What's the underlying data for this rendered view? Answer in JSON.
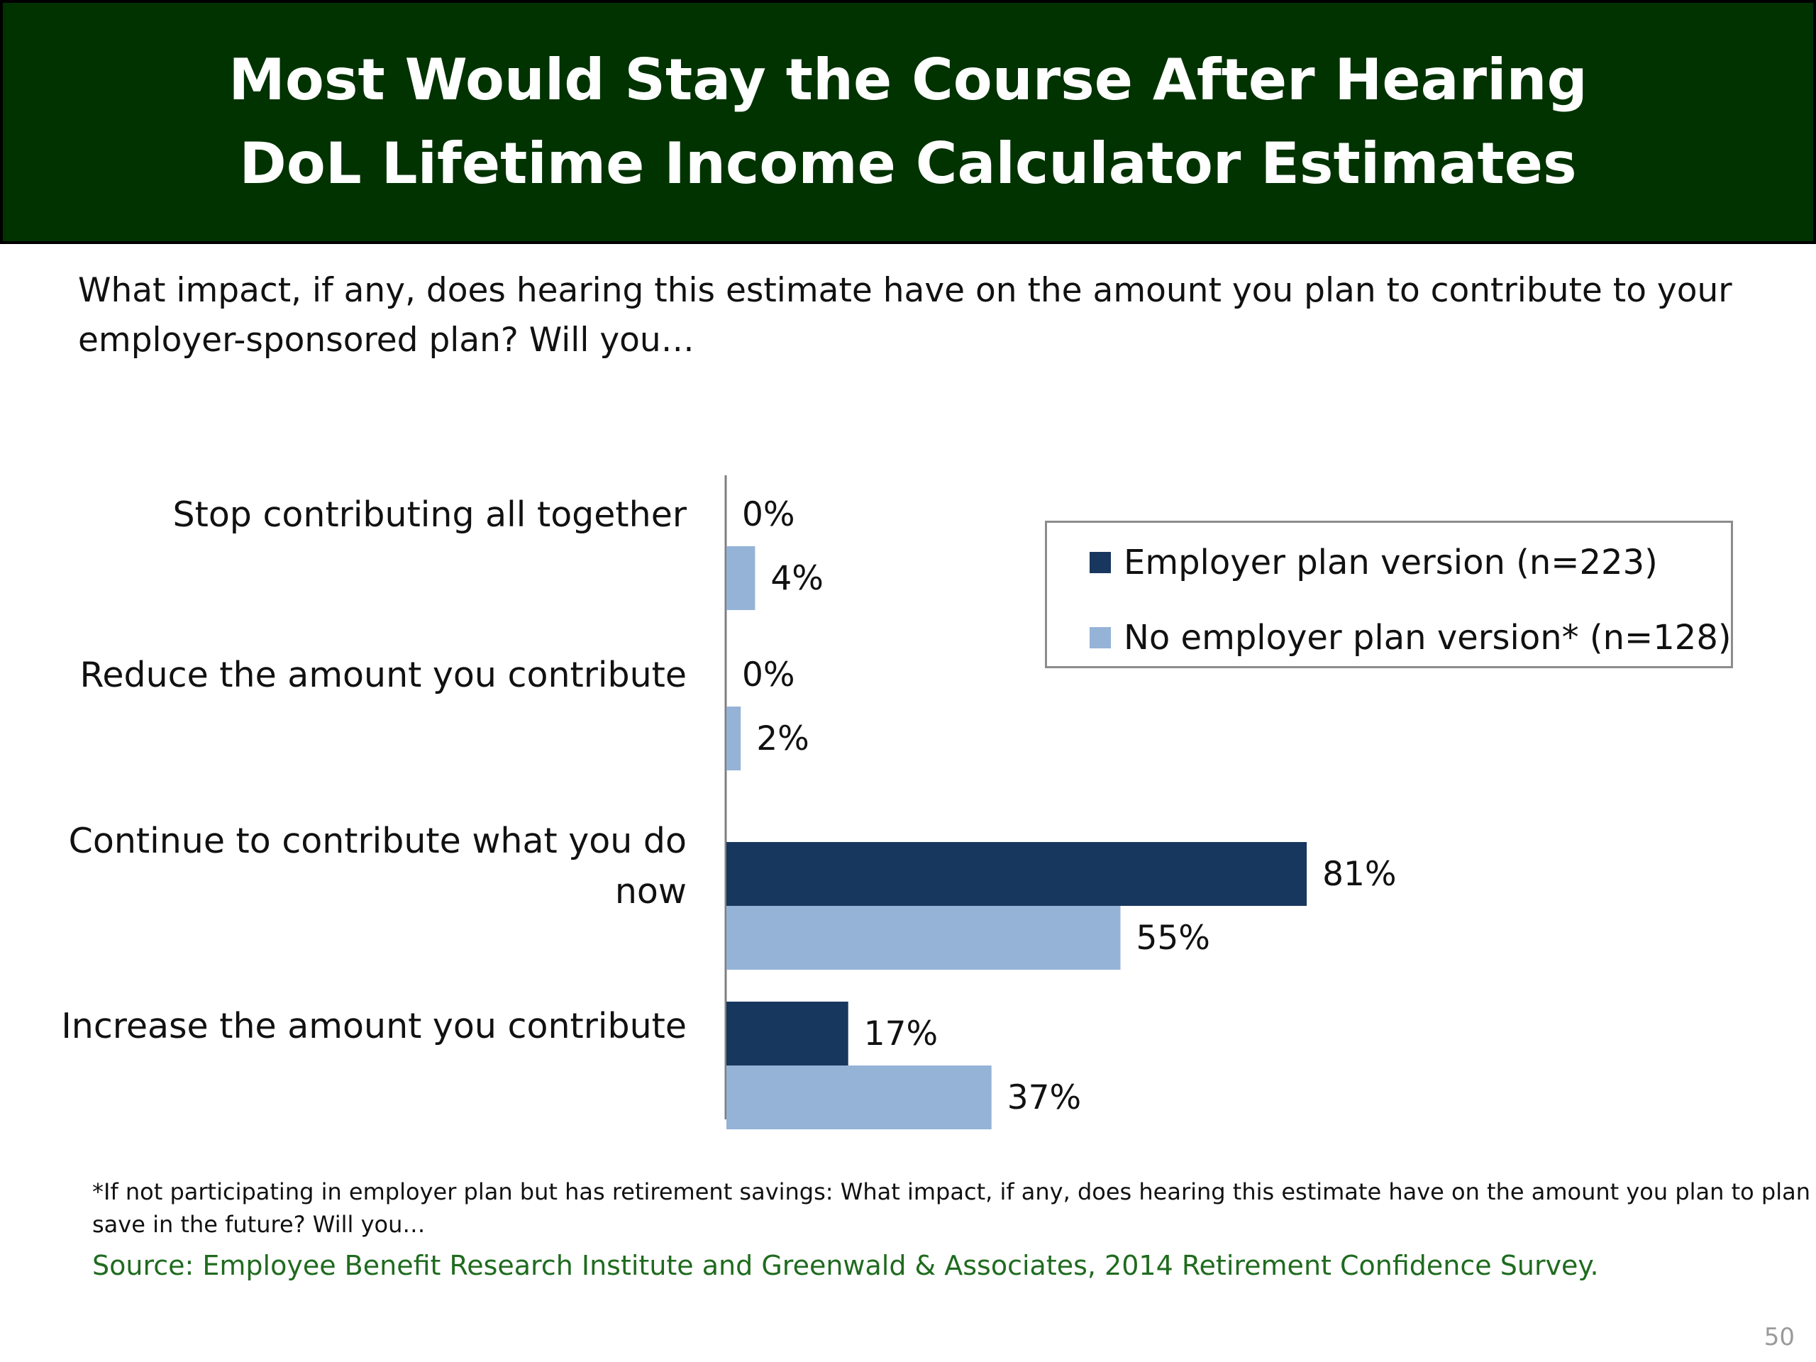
{
  "title": {
    "line1": "Most Would Stay the Course After Hearing",
    "line2": "DoL Lifetime Income Calculator Estimates"
  },
  "question": {
    "line1": "What impact, if any, does hearing this estimate have on the amount you plan to contribute to your",
    "line2": "employer-sponsored plan? Will you…"
  },
  "legend": {
    "items": [
      {
        "label": "Employer plan version (n=223)",
        "color": "#17375e"
      },
      {
        "label": "No employer plan version* (n=128)",
        "color": "#95b3d7"
      }
    ]
  },
  "chart_data": {
    "type": "bar",
    "orientation": "horizontal",
    "categories": [
      [
        "Stop contributing all together"
      ],
      [
        "Reduce the amount you contribute"
      ],
      [
        "Continue to contribute what you do",
        "now"
      ],
      [
        "Increase the amount you contribute"
      ]
    ],
    "series": [
      {
        "name": "Employer plan version (n=223)",
        "color": "#17375e",
        "values": [
          0,
          0,
          81,
          17
        ],
        "labels": [
          "0%",
          "0%",
          "81%",
          "17%"
        ]
      },
      {
        "name": "No employer plan version* (n=128)",
        "color": "#95b3d7",
        "values": [
          4,
          2,
          55,
          37
        ],
        "labels": [
          "4%",
          "2%",
          "55%",
          "37%"
        ]
      }
    ],
    "xlim": [
      0,
      100
    ],
    "legend_position": "top-right"
  },
  "footnote": {
    "line1": "*If not participating in employer plan but has retirement savings: What impact, if any, does hearing this estimate have on the amount you plan to plan to",
    "line2": "save in the future?  Will you…"
  },
  "source": "Source:  Employee Benefit Research Institute and Greenwald & Associates, 2014 Retirement Confidence Survey.",
  "page_number": "50"
}
